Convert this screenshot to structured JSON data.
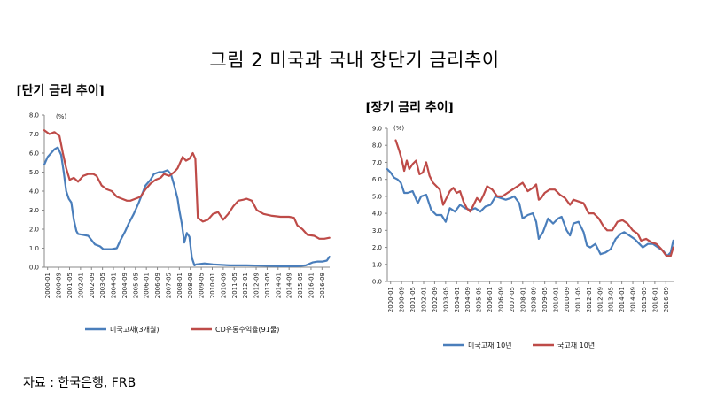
{
  "figure_title": "그림 2 미국과 국내 장단기 금리추이",
  "source": "자료 : 한국은행, FRB",
  "colors": {
    "blue": "#4a7ebb",
    "red": "#be4b48",
    "axis": "#888888"
  },
  "chart_data": [
    {
      "type": "line",
      "subtitle": "[단기 금리 추이]",
      "unit_label": "(%)",
      "ylim": [
        0,
        8
      ],
      "yticks": [
        "0.0",
        "1.0",
        "2.0",
        "3.0",
        "4.0",
        "5.0",
        "6.0",
        "7.0",
        "8.0"
      ],
      "xlim": [
        2000.0,
        2016.917
      ],
      "xtick_labels": [
        "2000-01",
        "2000-09",
        "2001-05",
        "2002-01",
        "2002-09",
        "2003-05",
        "2004-01",
        "2004-09",
        "2005-05",
        "2006-01",
        "2006-09",
        "2007-05",
        "2008-01",
        "2008-09",
        "2009-05",
        "2010-01",
        "2010-09",
        "2011-05",
        "2012-01",
        "2012-09",
        "2013-05",
        "2014-01",
        "2014-09",
        "2015-05",
        "2016-01",
        "2016-09"
      ],
      "series": [
        {
          "name": "미국고채(3개월)",
          "color": "#4a7ebb",
          "x": [
            2000.0,
            2000.2,
            2000.4,
            2000.6,
            2000.8,
            2001.0,
            2001.15,
            2001.3,
            2001.45,
            2001.6,
            2001.75,
            2001.9,
            2002.0,
            2002.3,
            2002.6,
            2003.0,
            2003.3,
            2003.5,
            2003.8,
            2004.0,
            2004.3,
            2004.5,
            2004.8,
            2005.0,
            2005.3,
            2005.6,
            2006.0,
            2006.3,
            2006.5,
            2006.8,
            2007.0,
            2007.3,
            2007.5,
            2007.7,
            2007.9,
            2008.0,
            2008.15,
            2008.3,
            2008.45,
            2008.6,
            2008.75,
            2008.9,
            2009.0,
            2009.5,
            2010.0,
            2011.0,
            2012.0,
            2013.0,
            2014.0,
            2015.0,
            2015.5,
            2015.9,
            2016.2,
            2016.5,
            2016.75,
            2016.9
          ],
          "y": [
            5.4,
            5.8,
            6.0,
            6.2,
            6.3,
            5.9,
            5.0,
            4.0,
            3.6,
            3.4,
            2.5,
            1.9,
            1.75,
            1.7,
            1.65,
            1.2,
            1.1,
            0.95,
            0.95,
            0.95,
            1.0,
            1.4,
            1.9,
            2.3,
            2.8,
            3.4,
            4.3,
            4.6,
            4.9,
            5.0,
            5.0,
            5.1,
            4.9,
            4.3,
            3.6,
            3.0,
            2.3,
            1.3,
            1.8,
            1.6,
            0.5,
            0.1,
            0.15,
            0.2,
            0.15,
            0.1,
            0.1,
            0.08,
            0.05,
            0.05,
            0.1,
            0.25,
            0.3,
            0.3,
            0.35,
            0.55
          ]
        },
        {
          "name": "CD유통수익율(91물)",
          "color": "#be4b48",
          "x": [
            2000.0,
            2000.3,
            2000.6,
            2000.9,
            2001.1,
            2001.3,
            2001.5,
            2001.75,
            2002.0,
            2002.3,
            2002.6,
            2002.9,
            2003.1,
            2003.4,
            2003.7,
            2004.0,
            2004.3,
            2004.6,
            2004.9,
            2005.1,
            2005.4,
            2005.7,
            2006.0,
            2006.3,
            2006.6,
            2006.9,
            2007.1,
            2007.4,
            2007.7,
            2007.9,
            2008.0,
            2008.2,
            2008.4,
            2008.6,
            2008.8,
            2008.95,
            2009.1,
            2009.4,
            2009.7,
            2010.0,
            2010.3,
            2010.6,
            2010.9,
            2011.2,
            2011.5,
            2011.8,
            2012.0,
            2012.3,
            2012.6,
            2013.0,
            2013.5,
            2014.0,
            2014.5,
            2014.8,
            2015.0,
            2015.3,
            2015.6,
            2016.0,
            2016.3,
            2016.6,
            2016.9
          ],
          "y": [
            7.2,
            7.0,
            7.1,
            6.9,
            6.0,
            5.2,
            4.6,
            4.7,
            4.5,
            4.8,
            4.9,
            4.9,
            4.8,
            4.3,
            4.1,
            4.0,
            3.7,
            3.6,
            3.5,
            3.5,
            3.6,
            3.7,
            4.1,
            4.4,
            4.6,
            4.7,
            4.9,
            4.8,
            5.0,
            5.2,
            5.4,
            5.8,
            5.6,
            5.7,
            6.0,
            5.7,
            2.6,
            2.4,
            2.5,
            2.8,
            2.9,
            2.5,
            2.8,
            3.2,
            3.5,
            3.55,
            3.6,
            3.5,
            3.0,
            2.8,
            2.7,
            2.65,
            2.65,
            2.6,
            2.2,
            2.0,
            1.7,
            1.65,
            1.5,
            1.5,
            1.55
          ]
        }
      ]
    },
    {
      "type": "line",
      "subtitle": "[장기 금리 추이]",
      "unit_label": "(%)",
      "ylim": [
        0,
        9
      ],
      "yticks": [
        "0.0",
        "1.0",
        "2.0",
        "3.0",
        "4.0",
        "5.0",
        "6.0",
        "7.0",
        "8.0",
        "9.0"
      ],
      "xlim": [
        2000.0,
        2016.917
      ],
      "xtick_labels": [
        "2000-01",
        "2000-09",
        "2001-05",
        "2002-01",
        "2002-09",
        "2003-05",
        "2004-01",
        "2004-09",
        "2005-05",
        "2006-01",
        "2006-09",
        "2007-05",
        "2008-01",
        "2008-09",
        "2009-05",
        "2010-01",
        "2010-09",
        "2011-05",
        "2012-01",
        "2012-09",
        "2013-05",
        "2014-01",
        "2014-09",
        "2015-05",
        "2016-01",
        "2016-09"
      ],
      "series": [
        {
          "name": "미국고채 10년",
          "color": "#4a7ebb",
          "x": [
            2000.0,
            2000.2,
            2000.4,
            2000.6,
            2000.8,
            2001.0,
            2001.2,
            2001.5,
            2001.8,
            2002.0,
            2002.3,
            2002.6,
            2002.9,
            2003.2,
            2003.45,
            2003.7,
            2004.0,
            2004.3,
            2004.6,
            2004.9,
            2005.2,
            2005.5,
            2005.8,
            2006.1,
            2006.4,
            2006.7,
            2007.0,
            2007.3,
            2007.5,
            2007.8,
            2008.0,
            2008.3,
            2008.6,
            2008.8,
            2008.95,
            2009.2,
            2009.5,
            2009.8,
            2010.1,
            2010.3,
            2010.6,
            2010.8,
            2011.0,
            2011.3,
            2011.6,
            2011.8,
            2012.0,
            2012.3,
            2012.6,
            2012.9,
            2013.2,
            2013.5,
            2013.8,
            2014.0,
            2014.3,
            2014.6,
            2014.9,
            2015.1,
            2015.4,
            2015.7,
            2016.0,
            2016.3,
            2016.55,
            2016.75,
            2016.9
          ],
          "y": [
            6.6,
            6.4,
            6.1,
            6.0,
            5.8,
            5.2,
            5.2,
            5.3,
            4.6,
            5.0,
            5.1,
            4.2,
            3.9,
            3.9,
            3.5,
            4.3,
            4.1,
            4.5,
            4.3,
            4.2,
            4.3,
            4.1,
            4.4,
            4.5,
            5.0,
            4.9,
            4.8,
            4.9,
            5.0,
            4.6,
            3.7,
            3.9,
            4.0,
            3.5,
            2.5,
            2.9,
            3.7,
            3.4,
            3.7,
            3.8,
            3.0,
            2.7,
            3.4,
            3.5,
            2.9,
            2.1,
            2.0,
            2.2,
            1.6,
            1.7,
            1.9,
            2.5,
            2.8,
            2.9,
            2.7,
            2.5,
            2.2,
            2.0,
            2.2,
            2.2,
            2.0,
            1.8,
            1.5,
            1.7,
            2.4
          ]
        },
        {
          "name": "국고채 10년",
          "color": "#be4b48",
          "x": [
            2000.5,
            2000.7,
            2000.85,
            2001.0,
            2001.15,
            2001.3,
            2001.5,
            2001.7,
            2001.9,
            2002.1,
            2002.3,
            2002.5,
            2002.7,
            2002.9,
            2003.1,
            2003.3,
            2003.5,
            2003.7,
            2003.9,
            2004.1,
            2004.3,
            2004.5,
            2004.7,
            2004.9,
            2005.1,
            2005.3,
            2005.5,
            2005.7,
            2005.9,
            2006.2,
            2006.5,
            2006.8,
            2007.1,
            2007.4,
            2007.7,
            2008.0,
            2008.3,
            2008.6,
            2008.8,
            2008.95,
            2009.1,
            2009.3,
            2009.6,
            2009.9,
            2010.2,
            2010.5,
            2010.8,
            2011.0,
            2011.3,
            2011.6,
            2011.9,
            2012.2,
            2012.5,
            2012.8,
            2013.0,
            2013.3,
            2013.6,
            2013.9,
            2014.2,
            2014.5,
            2014.8,
            2015.0,
            2015.3,
            2015.6,
            2015.9,
            2016.2,
            2016.5,
            2016.75,
            2016.9
          ],
          "y": [
            8.3,
            7.7,
            7.2,
            6.5,
            7.1,
            6.6,
            6.9,
            7.1,
            6.3,
            6.4,
            7.0,
            6.2,
            5.8,
            5.6,
            5.4,
            4.5,
            4.9,
            5.3,
            5.5,
            5.2,
            5.3,
            4.7,
            4.3,
            4.1,
            4.5,
            4.9,
            4.7,
            5.1,
            5.6,
            5.4,
            5.0,
            5.0,
            5.2,
            5.4,
            5.6,
            5.8,
            5.3,
            5.5,
            5.7,
            4.8,
            4.9,
            5.2,
            5.4,
            5.4,
            5.1,
            4.9,
            4.5,
            4.8,
            4.7,
            4.6,
            4.0,
            4.0,
            3.7,
            3.2,
            3.0,
            3.0,
            3.5,
            3.6,
            3.4,
            3.0,
            2.8,
            2.4,
            2.5,
            2.3,
            2.2,
            1.9,
            1.5,
            1.5,
            2.0
          ]
        }
      ]
    }
  ]
}
